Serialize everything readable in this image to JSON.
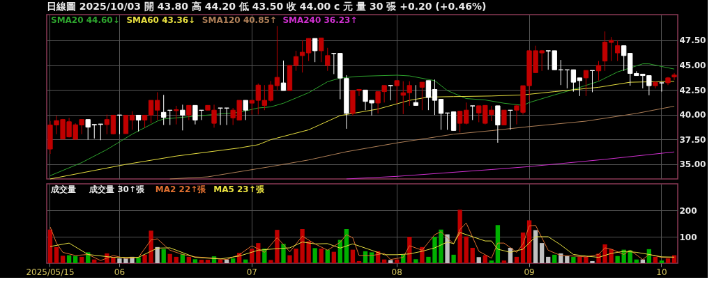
{
  "chart_data": [
    {
      "type": "candlestick",
      "title": "日線圖 2025/10/03 開 43.80 高 44.20 低 43.50 收 44.00 c 元 量 30 張 +0.20 (+0.46%)",
      "categories": [
        "2025/05/15",
        null,
        null,
        null,
        null,
        null,
        null,
        null,
        null,
        null,
        null,
        "06",
        null,
        null,
        null,
        null,
        null,
        null,
        null,
        null,
        null,
        null,
        null,
        null,
        null,
        null,
        null,
        null,
        null,
        null,
        null,
        null,
        "07",
        null,
        null,
        null,
        null,
        null,
        null,
        null,
        null,
        null,
        null,
        null,
        null,
        null,
        null,
        null,
        null,
        null,
        null,
        null,
        null,
        null,
        null,
        "08",
        null,
        null,
        null,
        null,
        null,
        null,
        null,
        null,
        null,
        null,
        null,
        null,
        null,
        null,
        null,
        null,
        null,
        null,
        null,
        null,
        "09",
        null,
        null,
        null,
        null,
        null,
        null,
        null,
        null,
        null,
        null,
        null,
        null,
        null,
        null,
        null,
        null,
        null,
        null,
        null,
        null,
        "10",
        null,
        null
      ],
      "ohlc": [
        [
          36.52,
          39.35,
          36.03,
          38.95
        ],
        [
          38.95,
          39.9,
          38.02,
          39.39
        ],
        [
          37.53,
          39.56,
          37.53,
          39.5
        ],
        [
          37.75,
          39.67,
          37.69,
          39.28
        ],
        [
          37.51,
          39.12,
          37.47,
          38.97
        ],
        [
          38.95,
          39.5,
          38.02,
          39.5
        ],
        [
          39.5,
          39.5,
          37.47,
          38.73
        ],
        [
          39.0,
          39.0,
          37.58,
          38.95
        ],
        [
          39.05,
          39.05,
          37.42,
          39.0
        ],
        [
          38.99,
          40.0,
          38.02,
          39.5
        ],
        [
          38.06,
          39.94,
          38.02,
          39.94
        ],
        [
          39.96,
          39.96,
          38.02,
          39.94
        ],
        [
          38.08,
          39.94,
          38.08,
          39.94
        ],
        [
          39.45,
          40.33,
          38.46,
          39.94
        ],
        [
          39.94,
          39.94,
          38.3,
          39.45
        ],
        [
          39.45,
          39.94,
          38.68,
          39.94
        ],
        [
          39.96,
          41.44,
          39.12,
          41.44
        ],
        [
          40.45,
          42.26,
          39.45,
          41.44
        ],
        [
          40.23,
          41.99,
          38.95,
          39.72
        ],
        [
          40.45,
          40.45,
          38.95,
          40.43
        ],
        [
          40.4,
          40.89,
          39.01,
          40.5
        ],
        [
          40.45,
          41.0,
          38.4,
          39.94
        ],
        [
          39.94,
          40.93,
          39.45,
          40.93
        ],
        [
          40.93,
          40.93,
          39.01,
          39.45
        ],
        [
          40.45,
          40.45,
          39.45,
          40.43
        ],
        [
          40.45,
          40.93,
          40.45,
          40.93
        ],
        [
          39.12,
          41.0,
          38.68,
          40.45
        ],
        [
          40.67,
          40.67,
          38.95,
          40.65
        ],
        [
          40.67,
          40.67,
          38.95,
          40.65
        ],
        [
          39.67,
          40.67,
          38.95,
          40.45
        ],
        [
          39.45,
          41.44,
          39.45,
          41.44
        ],
        [
          41.44,
          41.44,
          39.45,
          40.45
        ],
        [
          41.16,
          41.44,
          40.0,
          41.44
        ],
        [
          41.44,
          43.14,
          40.01,
          42.98
        ],
        [
          40.93,
          42.98,
          40.45,
          41.44
        ],
        [
          41.44,
          43.4,
          41.3,
          42.99
        ],
        [
          42.92,
          48.95,
          42.43,
          43.76
        ],
        [
          43.2,
          45.46,
          42.43,
          42.43
        ],
        [
          42.43,
          44.97,
          42.43,
          44.97
        ],
        [
          44.97,
          46.45,
          44.42,
          45.86
        ],
        [
          45.96,
          47.5,
          44.25,
          46.3
        ],
        [
          46.23,
          47.69,
          45.41,
          47.69
        ],
        [
          47.69,
          47.69,
          45.3,
          46.45
        ],
        [
          46.45,
          47.73,
          45.3,
          47.73
        ],
        [
          44.97,
          46.74,
          44.42,
          45.96
        ],
        [
          46.19,
          46.19,
          44.09,
          46.17
        ],
        [
          46.19,
          46.19,
          41.55,
          43.69
        ],
        [
          43.65,
          43.98,
          38.57,
          40.12
        ],
        [
          40.12,
          42.43,
          39.9,
          42.43
        ],
        [
          42.43,
          42.54,
          41.88,
          42.54
        ],
        [
          42.48,
          42.48,
          40.45,
          41.33
        ],
        [
          41.44,
          41.44,
          39.9,
          41.17
        ],
        [
          41.17,
          42.32,
          40.12,
          42.32
        ],
        [
          42.32,
          42.94,
          41.22,
          42.94
        ],
        [
          42.94,
          42.94,
          41.44,
          42.92
        ],
        [
          42.92,
          43.43,
          41.11,
          43.43
        ],
        [
          41.95,
          43.37,
          40.05,
          42.21
        ],
        [
          42.21,
          43.37,
          40.89,
          42.94
        ],
        [
          41.22,
          42.98,
          40.93,
          40.93
        ],
        [
          42.76,
          43.27,
          40.45,
          43.27
        ],
        [
          43.43,
          43.43,
          40.45,
          41.73
        ],
        [
          42.54,
          43.54,
          39.96,
          41.44
        ],
        [
          41.55,
          41.55,
          38.46,
          40.12
        ],
        [
          40.17,
          40.17,
          38.46,
          40.15
        ],
        [
          40.28,
          40.28,
          38.4,
          38.4
        ],
        [
          39.12,
          40.34,
          38.2,
          40.34
        ],
        [
          39.12,
          41.22,
          39.01,
          40.45
        ],
        [
          40.89,
          40.89,
          39.45,
          40.87
        ],
        [
          40.17,
          40.89,
          39.23,
          40.89
        ],
        [
          39.12,
          40.93,
          39.01,
          40.93
        ],
        [
          40.0,
          40.89,
          39.34,
          40.45
        ],
        [
          40.89,
          40.89,
          37.16,
          38.95
        ],
        [
          38.95,
          40.45,
          38.95,
          40.45
        ],
        [
          40.45,
          40.45,
          38.46,
          40.43
        ],
        [
          40.45,
          41.0,
          39.01,
          40.89
        ],
        [
          40.23,
          42.92,
          40.01,
          42.92
        ],
        [
          42.92,
          46.45,
          41.44,
          46.45
        ],
        [
          44.24,
          46.96,
          44.2,
          46.45
        ],
        [
          46.23,
          46.52,
          44.42,
          46.45
        ],
        [
          46.45,
          46.45,
          44.53,
          46.43
        ],
        [
          46.45,
          46.45,
          44.53,
          44.53
        ],
        [
          44.53,
          45.52,
          42.98,
          44.51
        ],
        [
          44.53,
          44.53,
          42.65,
          44.51
        ],
        [
          44.53,
          44.53,
          42.32,
          43.27
        ],
        [
          43.71,
          43.71,
          41.88,
          43.43
        ],
        [
          43.71,
          44.46,
          41.88,
          44.46
        ],
        [
          44.46,
          44.46,
          42.26,
          44.44
        ],
        [
          44.42,
          45.41,
          43.43,
          44.97
        ],
        [
          45.41,
          48.4,
          44.42,
          47.33
        ],
        [
          47.29,
          47.84,
          45.41,
          47.5
        ],
        [
          46.23,
          47.47,
          45.41,
          46.96
        ],
        [
          46.96,
          46.96,
          44.42,
          45.96
        ],
        [
          46.19,
          46.19,
          42.92,
          44.16
        ],
        [
          44.16,
          44.38,
          43.94,
          43.94
        ],
        [
          44.09,
          44.09,
          42.65,
          43.94
        ],
        [
          43.94,
          43.94,
          41.95,
          42.92
        ],
        [
          42.92,
          43.37,
          42.65,
          43.27
        ],
        [
          43.21,
          43.21,
          42.32,
          43.2
        ],
        [
          43.21,
          43.8,
          42.98,
          43.71
        ],
        [
          43.8,
          44.2,
          43.5,
          44.0
        ]
      ],
      "colors": [
        "#c00000",
        "#c00000",
        "#c00000",
        "#c00000",
        "#c00000",
        "#c00000",
        "#ffffff",
        "#ffffff",
        "#ffffff",
        "#c00000",
        "#c00000",
        "#ffffff",
        "#c00000",
        "#c00000",
        "#ffffff",
        "#c00000",
        "#c00000",
        "#c00000",
        "#ffffff",
        "#ffffff",
        "#c00000",
        "#ffffff",
        "#c00000",
        "#ffffff",
        "#ffffff",
        "#c00000",
        "#c00000",
        "#ffffff",
        "#ffffff",
        "#c00000",
        "#c00000",
        "#ffffff",
        "#c00000",
        "#c00000",
        "#c00000",
        "#c00000",
        "#c00000",
        "#ffffff",
        "#c00000",
        "#c00000",
        "#c00000",
        "#c00000",
        "#ffffff",
        "#c00000",
        "#c00000",
        "#ffffff",
        "#ffffff",
        "#ffffff",
        "#c00000",
        "#c00000",
        "#ffffff",
        "#ffffff",
        "#c00000",
        "#c00000",
        "#ffffff",
        "#c00000",
        "#c00000",
        "#c00000",
        "#ffffff",
        "#c00000",
        "#ffffff",
        "#ffffff",
        "#ffffff",
        "#ffffff",
        "#ffffff",
        "#c00000",
        "#c00000",
        "#ffffff",
        "#c00000",
        "#c00000",
        "#c00000",
        "#ffffff",
        "#c00000",
        "#ffffff",
        "#c00000",
        "#c00000",
        "#c00000",
        "#c00000",
        "#c00000",
        "#ffffff",
        "#ffffff",
        "#ffffff",
        "#ffffff",
        "#ffffff",
        "#ffffff",
        "#c00000",
        "#ffffff",
        "#c00000",
        "#c00000",
        "#c00000",
        "#c00000",
        "#ffffff",
        "#ffffff",
        "#ffffff",
        "#ffffff",
        "#ffffff",
        "#c00000",
        "#ffffff",
        "#c00000",
        "#c00000"
      ],
      "series": [
        {
          "type": "line",
          "name": "SMA20 44.60↓",
          "color": "#2ea52e",
          "values": [
            33.83,
            null,
            null,
            null,
            null,
            35.15,
            null,
            null,
            null,
            36.47,
            null,
            null,
            null,
            38.02,
            null,
            null,
            null,
            39.34,
            39.56,
            null,
            null,
            null,
            null,
            null,
            39.9,
            null,
            null,
            null,
            null,
            null,
            40.23,
            null,
            null,
            40.67,
            null,
            40.78,
            null,
            41.15,
            null,
            null,
            null,
            42.21,
            null,
            null,
            43.32,
            null,
            43.69,
            null,
            null,
            43.87,
            null,
            null,
            null,
            null,
            null,
            43.98,
            null,
            43.91,
            null,
            null,
            null,
            43.43,
            null,
            42.43,
            null,
            null,
            41.62,
            null,
            null,
            41.48,
            null,
            null,
            41.15,
            null,
            null,
            40.93,
            41.22,
            null,
            null,
            null,
            41.99,
            null,
            null,
            42.54,
            null,
            null,
            null,
            43.36,
            null,
            null,
            44.31,
            null,
            null,
            null,
            45.13,
            45.13,
            null,
            44.86,
            null,
            44.6
          ]
        },
        {
          "type": "line",
          "name": "SMA60 43.36↓",
          "color": "#e8e040",
          "values": [
            33.5,
            null,
            null,
            null,
            null,
            null,
            null,
            null,
            null,
            null,
            null,
            null,
            34.97,
            null,
            null,
            null,
            null,
            null,
            null,
            null,
            35.81,
            null,
            null,
            null,
            null,
            null,
            null,
            null,
            null,
            null,
            36.63,
            null,
            null,
            36.96,
            null,
            37.47,
            null,
            null,
            null,
            null,
            null,
            38.46,
            null,
            null,
            null,
            null,
            39.9,
            null,
            null,
            null,
            null,
            null,
            40.56,
            null,
            null,
            null,
            null,
            41.44,
            null,
            null,
            41.77,
            null,
            null,
            null,
            41.82,
            null,
            null,
            null,
            null,
            null,
            41.88,
            null,
            null,
            null,
            null,
            41.99,
            null,
            null,
            null,
            null,
            42.32,
            null,
            null,
            null,
            null,
            null,
            null,
            42.76,
            null,
            null,
            null,
            null,
            43.27,
            null,
            null,
            null,
            null,
            null,
            null,
            43.36
          ]
        },
        {
          "type": "line",
          "name": "SMA120 40.85↑",
          "color": "#b08058",
          "values": [
            null,
            null,
            null,
            null,
            null,
            null,
            null,
            null,
            null,
            null,
            null,
            null,
            null,
            null,
            null,
            null,
            null,
            null,
            null,
            33.5,
            null,
            null,
            null,
            null,
            null,
            33.71,
            null,
            null,
            null,
            null,
            null,
            null,
            null,
            null,
            null,
            34.75,
            null,
            null,
            null,
            null,
            null,
            35.42,
            null,
            null,
            null,
            null,
            null,
            36.25,
            null,
            null,
            null,
            null,
            null,
            null,
            null,
            37.14,
            null,
            null,
            null,
            null,
            null,
            null,
            null,
            null,
            38.02,
            null,
            null,
            null,
            null,
            null,
            38.38,
            null,
            null,
            null,
            null,
            null,
            38.79,
            null,
            null,
            null,
            null,
            null,
            null,
            null,
            null,
            39.34,
            null,
            null,
            null,
            null,
            null,
            null,
            null,
            40.12,
            null,
            null,
            null,
            null,
            null,
            40.85
          ]
        },
        {
          "type": "line",
          "name": "SMA240 36.23↑",
          "color": "#d030d0",
          "values": [
            null,
            null,
            null,
            null,
            null,
            null,
            null,
            null,
            null,
            null,
            null,
            null,
            null,
            null,
            null,
            null,
            null,
            null,
            null,
            null,
            null,
            null,
            null,
            null,
            null,
            null,
            null,
            null,
            null,
            null,
            null,
            null,
            null,
            null,
            null,
            null,
            null,
            null,
            null,
            null,
            null,
            null,
            null,
            null,
            null,
            null,
            null,
            33.5,
            null,
            null,
            null,
            null,
            null,
            null,
            null,
            33.76,
            null,
            null,
            null,
            null,
            null,
            null,
            null,
            null,
            null,
            null,
            null,
            null,
            null,
            null,
            34.45,
            null,
            null,
            null,
            null,
            null,
            34.75,
            null,
            null,
            null,
            null,
            null,
            null,
            null,
            null,
            null,
            null,
            null,
            35.48,
            null,
            null,
            null,
            null,
            null,
            null,
            null,
            null,
            null,
            null,
            36.23
          ]
        }
      ],
      "ylim": [
        33.5,
        50.1
      ],
      "yticks": [
        {
          "value": 35,
          "label": "35.00"
        },
        {
          "value": 37.5,
          "label": "37.50"
        },
        {
          "value": 40,
          "label": "40.00"
        },
        {
          "value": 42.5,
          "label": "42.50"
        },
        {
          "value": 45,
          "label": "45.00"
        },
        {
          "value": 47.5,
          "label": "47.50"
        }
      ],
      "grid": true,
      "legend": "top left",
      "tick_labels": "y"
    },
    {
      "type": "bar",
      "ylabel": "成交量",
      "categories": [
        "2025/05/15",
        null,
        null,
        null,
        null,
        null,
        null,
        null,
        null,
        null,
        null,
        "06",
        null,
        null,
        null,
        null,
        null,
        null,
        null,
        null,
        null,
        null,
        null,
        null,
        null,
        null,
        null,
        null,
        null,
        null,
        null,
        null,
        "07",
        null,
        null,
        null,
        null,
        null,
        null,
        null,
        null,
        null,
        null,
        null,
        null,
        null,
        null,
        null,
        null,
        null,
        null,
        null,
        null,
        null,
        null,
        "08",
        null,
        null,
        null,
        null,
        null,
        null,
        null,
        null,
        null,
        null,
        null,
        null,
        null,
        null,
        null,
        null,
        null,
        null,
        null,
        null,
        "09",
        null,
        null,
        null,
        null,
        null,
        null,
        null,
        null,
        null,
        null,
        null,
        null,
        null,
        null,
        null,
        null,
        null,
        null,
        null,
        null,
        "10",
        null,
        null
      ],
      "series": [
        {
          "type": "bar",
          "name": "成交量 30↑張",
          "values": [
            127,
            61,
            28,
            30,
            27,
            24,
            41,
            14,
            3,
            37,
            24,
            18,
            18,
            24,
            22,
            32,
            123,
            61,
            53,
            35,
            24,
            35,
            24,
            15,
            13,
            13,
            26,
            14,
            14,
            18,
            39,
            14,
            55,
            76,
            55,
            12,
            126,
            73,
            30,
            55,
            129,
            83,
            57,
            55,
            51,
            43,
            88,
            129,
            51,
            8,
            45,
            41,
            45,
            14,
            12,
            14,
            32,
            100,
            15,
            61,
            24,
            100,
            127,
            109,
            32,
            202,
            101,
            58,
            23,
            30,
            10,
            144,
            10,
            58,
            24,
            116,
            162,
            125,
            76,
            24,
            32,
            37,
            27,
            24,
            24,
            24,
            8,
            36,
            71,
            53,
            27,
            51,
            49,
            14,
            14,
            53,
            24,
            10,
            18,
            30
          ],
          "colors": [
            "#c00000",
            "#c00000",
            "#c00000",
            "#00b000",
            "#00b000",
            "#c00000",
            "#00b000",
            "#c00000",
            "#c00000",
            "#c00000",
            "#c00000",
            "#c0c0c0",
            "#c0c0c0",
            "#c0c0c0",
            "#00b000",
            "#c00000",
            "#c00000",
            "#c0c0c0",
            "#00b000",
            "#c00000",
            "#c00000",
            "#00b000",
            "#c00000",
            "#00b000",
            "#c00000",
            "#c00000",
            "#00b000",
            "#c00000",
            "#c0c0c0",
            "#00b000",
            "#c00000",
            "#00b000",
            "#c00000",
            "#c00000",
            "#00b000",
            "#c00000",
            "#c00000",
            "#00b000",
            "#c00000",
            "#c00000",
            "#c00000",
            "#c00000",
            "#00b000",
            "#c00000",
            "#00b000",
            "#c00000",
            "#00b000",
            "#00b000",
            "#c00000",
            "#c00000",
            "#00b000",
            "#00b000",
            "#c00000",
            "#c00000",
            "#c0c0c0",
            "#c00000",
            "#00b000",
            "#c00000",
            "#00b000",
            "#c00000",
            "#00b000",
            "#00b000",
            "#00b000",
            "#c0c0c0",
            "#00b000",
            "#c00000",
            "#c00000",
            "#c00000",
            "#c0c0c0",
            "#c00000",
            "#00b000",
            "#00b000",
            "#c00000",
            "#c0c0c0",
            "#c00000",
            "#c00000",
            "#c00000",
            "#c0c0c0",
            "#c0c0c0",
            "#c0c0c0",
            "#00b000",
            "#c0c0c0",
            "#c0c0c0",
            "#00b000",
            "#c00000",
            "#c00000",
            "#c0c0c0",
            "#c00000",
            "#c00000",
            "#c00000",
            "#00b000",
            "#00b000",
            "#00b000",
            "#00b000",
            "#c0c0c0",
            "#00b000",
            "#c00000",
            "#00b000",
            "#c00000",
            "#c00000"
          ]
        },
        {
          "type": "line",
          "name": "MA2 22↑張",
          "color": "#e07030",
          "values": [
            137,
            76,
            41,
            null,
            29,
            null,
            33,
            null,
            10,
            null,
            29,
            null,
            18,
            null,
            22,
            null,
            88,
            92,
            null,
            49,
            null,
            33,
            null,
            24,
            null,
            null,
            19,
            null,
            14,
            null,
            32,
            null,
            66,
            null,
            41,
            null,
            97,
            null,
            43,
            null,
            102,
            null,
            73,
            null,
            49,
            null,
            79,
            108,
            96,
            29,
            null,
            29,
            null,
            37,
            14,
            null,
            22,
            66,
            null,
            49,
            null,
            108,
            119,
            null,
            73,
            127,
            152,
            null,
            45,
            null,
            19,
            76,
            76,
            null,
            41,
            73,
            141,
            143,
            null,
            49,
            null,
            29,
            null,
            27,
            null,
            24,
            null,
            33,
            58,
            53,
            null,
            33,
            49,
            null,
            14,
            33,
            null,
            22,
            null,
            22
          ]
        },
        {
          "type": "line",
          "name": "MA5 23↑張",
          "color": "#e8e040",
          "values": [
            63,
            null,
            null,
            76,
            null,
            null,
            33,
            null,
            null,
            null,
            22,
            null,
            null,
            null,
            22,
            null,
            null,
            57,
            null,
            58,
            null,
            null,
            null,
            22,
            null,
            null,
            null,
            16,
            null,
            null,
            27,
            null,
            null,
            49,
            null,
            null,
            55,
            null,
            58,
            null,
            80,
            null,
            73,
            null,
            74,
            null,
            57,
            null,
            73,
            null,
            57,
            null,
            null,
            32,
            null,
            32,
            null,
            35,
            null,
            45,
            null,
            58,
            null,
            80,
            74,
            116,
            null,
            100,
            null,
            84,
            84,
            53,
            null,
            41,
            null,
            53,
            null,
            100,
            null,
            100,
            null,
            69,
            null,
            33,
            null,
            27,
            null,
            22,
            null,
            37,
            null,
            45,
            null,
            41,
            null,
            33,
            null,
            24,
            null,
            23
          ]
        }
      ],
      "ylim": [
        0,
        300
      ],
      "yticks": [
        100,
        200
      ],
      "grid": true,
      "legend": "top left"
    }
  ]
}
